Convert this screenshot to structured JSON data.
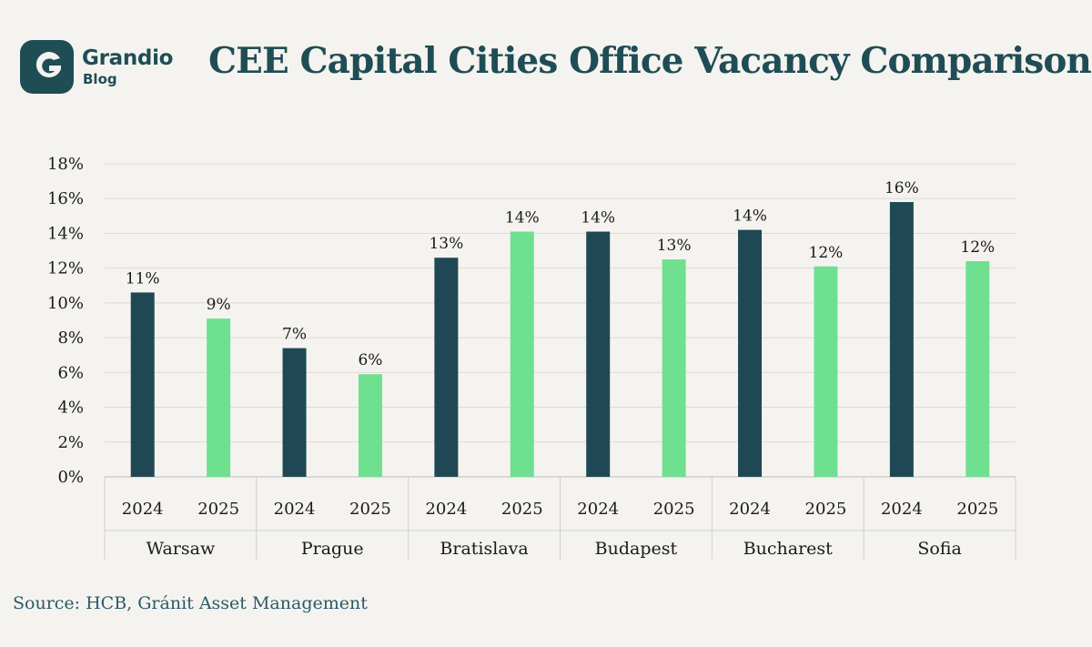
{
  "brand": {
    "name": "Grandio",
    "sub": "Blog"
  },
  "title": "CEE Capital Cities Office Vacancy Comparison",
  "source": "Source: HCB, Gránit Asset Management",
  "colors": {
    "accent": "#1f4d55",
    "series_2024": "#1f4854",
    "series_2025": "#6fe090",
    "background": "#f5f3ef"
  },
  "chart_data": {
    "type": "bar",
    "categories": [
      "Warsaw",
      "Prague",
      "Bratislava",
      "Budapest",
      "Bucharest",
      "Sofia"
    ],
    "series": [
      {
        "name": "2024",
        "values": [
          10.6,
          7.4,
          12.6,
          14.1,
          14.2,
          15.8
        ],
        "labels": [
          "11%",
          "7%",
          "13%",
          "14%",
          "14%",
          "16%"
        ],
        "color": "#1f4854"
      },
      {
        "name": "2025",
        "values": [
          9.1,
          5.9,
          14.1,
          12.5,
          12.1,
          12.4
        ],
        "labels": [
          "9%",
          "6%",
          "14%",
          "13%",
          "12%",
          "12%"
        ],
        "color": "#6fe090"
      }
    ],
    "yticks": [
      "0%",
      "2%",
      "4%",
      "6%",
      "8%",
      "10%",
      "12%",
      "14%",
      "16%",
      "18%"
    ],
    "ylim": [
      0,
      18
    ],
    "grid": true,
    "title": "",
    "xlabel": "",
    "ylabel": ""
  }
}
